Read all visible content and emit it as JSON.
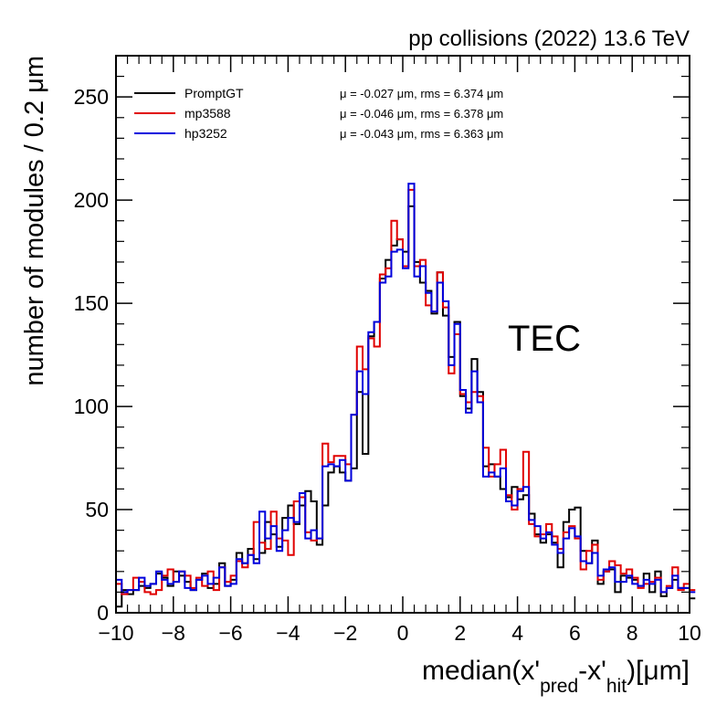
{
  "chart_data": {
    "type": "histogram-step",
    "header": "pp collisions (2022) 13.6 TeV",
    "annotation": "TEC",
    "xlabel": {
      "base": "median(x'",
      "sub1": "pred",
      "mid": "-x'",
      "sub2": "hit",
      "tail": ")[μm]"
    },
    "ylabel": "number of modules / 0.2  μm",
    "xlim": [
      -10,
      10
    ],
    "ylim": [
      0,
      270
    ],
    "x_ticks": [
      "−10",
      "−8",
      "−6",
      "−4",
      "−2",
      "0",
      "2",
      "4",
      "6",
      "8",
      "10"
    ],
    "y_ticks": [
      "0",
      "50",
      "100",
      "150",
      "200",
      "250"
    ],
    "bin_width": 0.2,
    "x_edges_start": -10,
    "series": [
      {
        "name": "PromptGT",
        "color": "#000000",
        "stats": "μ = -0.027 μm,  rms = 6.374 μm",
        "values": [
          3,
          11,
          9,
          11,
          13,
          12,
          14,
          19,
          17,
          13,
          20,
          18,
          15,
          11,
          16,
          19,
          12,
          14,
          24,
          13,
          16,
          29,
          24,
          31,
          26,
          29,
          44,
          38,
          32,
          46,
          52,
          43,
          52,
          59,
          54,
          33,
          52,
          68,
          71,
          68,
          64,
          70,
          107,
          77,
          134,
          141,
          162,
          171,
          178,
          181,
          175,
          197,
          170,
          160,
          156,
          145,
          165,
          144,
          124,
          141,
          105,
          99,
          123,
          107,
          71,
          72,
          66,
          60,
          56,
          61,
          55,
          57,
          48,
          38,
          34,
          38,
          34,
          22,
          44,
          50,
          51,
          30,
          24,
          35,
          14,
          20,
          21,
          10,
          18,
          17,
          16,
          13,
          19,
          10,
          20,
          8,
          12,
          16,
          12,
          12,
          7
        ]
      },
      {
        "name": "mp3588",
        "color": "#e00000",
        "stats": "μ = -0.046 μm,  rms = 6.378 μm",
        "values": [
          14,
          9,
          11,
          17,
          15,
          10,
          9,
          11,
          18,
          21,
          15,
          20,
          18,
          12,
          17,
          13,
          20,
          11,
          22,
          15,
          18,
          25,
          22,
          28,
          44,
          34,
          31,
          49,
          36,
          35,
          28,
          54,
          56,
          39,
          35,
          36,
          82,
          73,
          76,
          76,
          72,
          96,
          129,
          118,
          133,
          129,
          164,
          167,
          190,
          181,
          168,
          205,
          168,
          171,
          149,
          146,
          165,
          148,
          116,
          135,
          106,
          102,
          107,
          105,
          80,
          66,
          72,
          79,
          57,
          50,
          60,
          78,
          43,
          37,
          38,
          43,
          37,
          31,
          39,
          42,
          36,
          21,
          30,
          33,
          16,
          20,
          25,
          23,
          19,
          21,
          17,
          12,
          14,
          15,
          17,
          10,
          13,
          22,
          11,
          14,
          11
        ]
      },
      {
        "name": "hp3252",
        "color": "#0000dd",
        "stats": "μ = -0.043 μm,  rms = 6.363 μm",
        "values": [
          16,
          10,
          11,
          11,
          17,
          13,
          14,
          20,
          16,
          14,
          15,
          20,
          12,
          11,
          16,
          18,
          14,
          17,
          22,
          13,
          14,
          26,
          24,
          28,
          24,
          49,
          36,
          42,
          30,
          40,
          46,
          44,
          58,
          36,
          40,
          36,
          71,
          72,
          71,
          74,
          64,
          96,
          117,
          106,
          136,
          141,
          160,
          163,
          175,
          176,
          167,
          208,
          163,
          168,
          155,
          146,
          160,
          151,
          120,
          140,
          108,
          97,
          117,
          102,
          66,
          68,
          66,
          70,
          54,
          52,
          59,
          61,
          45,
          42,
          36,
          39,
          33,
          29,
          36,
          41,
          37,
          25,
          24,
          29,
          18,
          21,
          22,
          15,
          15,
          18,
          14,
          13,
          16,
          14,
          16,
          10,
          12,
          18,
          12,
          12,
          10
        ]
      }
    ]
  }
}
